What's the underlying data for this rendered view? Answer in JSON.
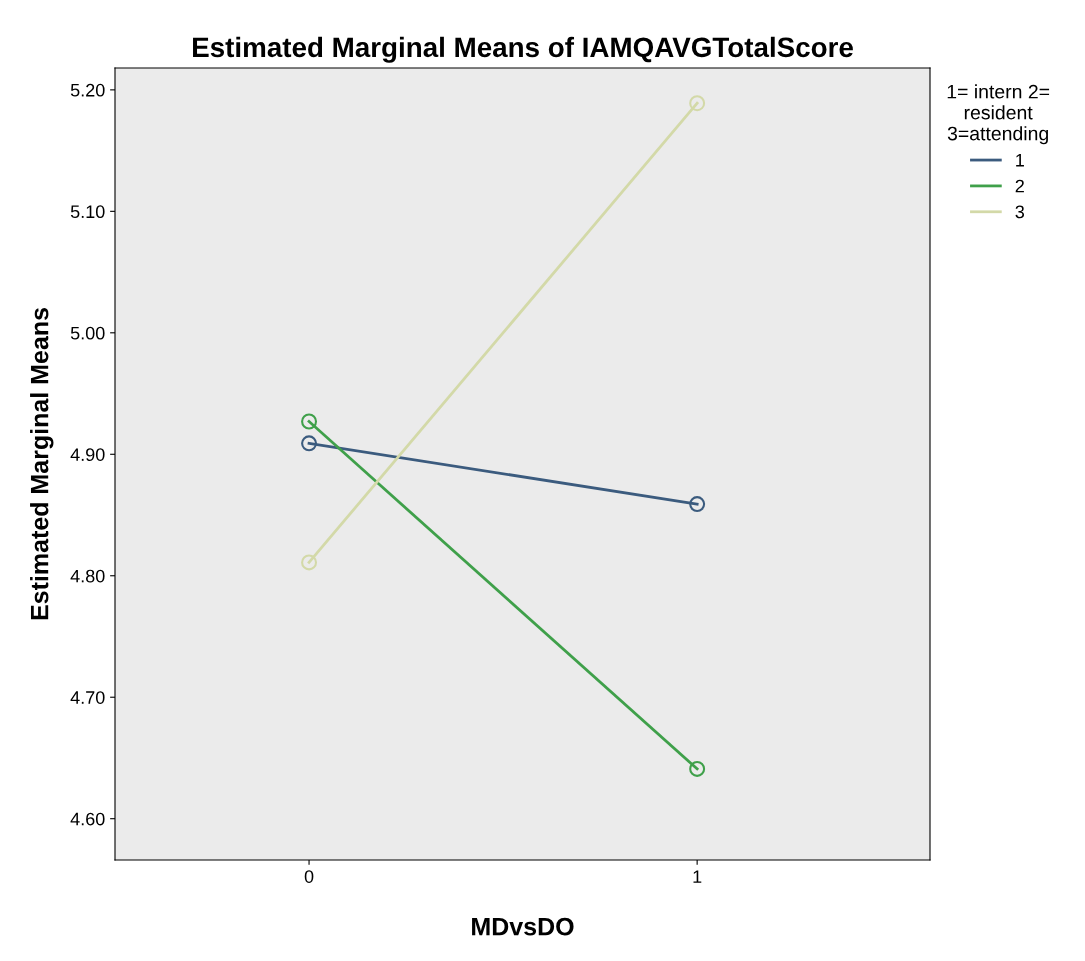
{
  "chart_data": {
    "type": "line",
    "title": "Estimated Marginal Means of IAMQAVGTotalScore",
    "xlabel": "MDvsDO",
    "ylabel": "Estimated Marginal Means",
    "legend_title": "1= intern 2=\nresident\n3=attending",
    "categories": [
      "0",
      "1"
    ],
    "series": [
      {
        "name": "1",
        "color": "#3b5b7e",
        "values": [
          4.909,
          4.859
        ]
      },
      {
        "name": "2",
        "color": "#3fa04a",
        "values": [
          4.927,
          4.641
        ]
      },
      {
        "name": "3",
        "color": "#d3d9a8",
        "values": [
          4.811,
          5.189
        ]
      }
    ],
    "ylim": [
      4.566,
      5.218
    ],
    "yticks": [
      {
        "value": 4.6,
        "label": "4.60"
      },
      {
        "value": 4.7,
        "label": "4.70"
      },
      {
        "value": 4.8,
        "label": "4.80"
      },
      {
        "value": 4.9,
        "label": "4.90"
      },
      {
        "value": 5.0,
        "label": "5.00"
      },
      {
        "value": 5.1,
        "label": "5.10"
      },
      {
        "value": 5.2,
        "label": "5.20"
      }
    ],
    "marker": "circle",
    "line_style": "solid",
    "legend": "top right"
  }
}
